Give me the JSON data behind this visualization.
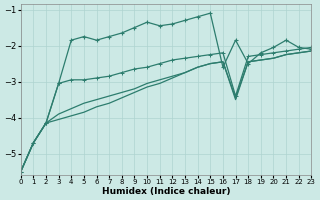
{
  "xlabel": "Humidex (Indice chaleur)",
  "xlim": [
    0,
    23
  ],
  "ylim": [
    -5.6,
    -0.85
  ],
  "yticks": [
    -5,
    -4,
    -3,
    -2,
    -1
  ],
  "xticks": [
    0,
    1,
    2,
    3,
    4,
    5,
    6,
    7,
    8,
    9,
    10,
    11,
    12,
    13,
    14,
    15,
    16,
    17,
    18,
    19,
    20,
    21,
    22,
    23
  ],
  "bg_color": "#cce9e5",
  "line_color": "#2d7d6e",
  "grid_color": "#afd4d0",
  "c1_x": [
    0,
    1,
    2,
    3,
    4,
    5,
    6,
    7,
    8,
    9,
    10,
    11,
    12,
    13,
    14,
    15,
    16,
    17,
    18,
    19,
    20,
    21,
    22,
    23
  ],
  "c1_y": [
    -5.5,
    -4.7,
    -4.15,
    -3.05,
    -1.85,
    -1.75,
    -1.85,
    -1.75,
    -1.65,
    -1.5,
    -1.35,
    -1.45,
    -1.4,
    -1.3,
    -1.2,
    -1.1,
    -2.6,
    -1.85,
    -2.5,
    -2.2,
    -2.05,
    -1.85,
    -2.05,
    -2.1
  ],
  "c2_x": [
    0,
    1,
    2,
    3,
    4,
    5,
    6,
    7,
    8,
    9,
    10,
    11,
    12,
    13,
    14,
    15,
    16,
    17,
    18,
    19,
    20,
    21,
    22,
    23
  ],
  "c2_y": [
    -5.5,
    -4.7,
    -4.15,
    -3.05,
    -2.95,
    -2.95,
    -2.9,
    -2.85,
    -2.75,
    -2.65,
    -2.6,
    -2.5,
    -2.4,
    -2.35,
    -2.3,
    -2.25,
    -2.2,
    -3.4,
    -2.3,
    -2.25,
    -2.2,
    -2.15,
    -2.1,
    -2.05
  ],
  "c3_x": [
    0,
    1,
    2,
    3,
    4,
    5,
    6,
    7,
    8,
    9,
    10,
    11,
    12,
    13,
    14,
    15,
    16,
    17,
    18,
    19,
    20,
    21,
    22,
    23
  ],
  "c3_y": [
    -5.5,
    -4.7,
    -4.15,
    -3.9,
    -3.75,
    -3.6,
    -3.5,
    -3.4,
    -3.3,
    -3.2,
    -3.05,
    -2.95,
    -2.85,
    -2.75,
    -2.6,
    -2.5,
    -2.45,
    -3.45,
    -2.45,
    -2.4,
    -2.35,
    -2.25,
    -2.2,
    -2.15
  ],
  "c4_x": [
    0,
    1,
    2,
    3,
    4,
    5,
    6,
    7,
    8,
    9,
    10,
    11,
    12,
    13,
    14,
    15,
    16,
    17,
    18,
    19,
    20,
    21,
    22,
    23
  ],
  "c4_y": [
    -5.5,
    -4.7,
    -4.15,
    -4.05,
    -3.95,
    -3.85,
    -3.7,
    -3.6,
    -3.45,
    -3.3,
    -3.15,
    -3.05,
    -2.9,
    -2.75,
    -2.6,
    -2.5,
    -2.45,
    -3.5,
    -2.45,
    -2.4,
    -2.35,
    -2.25,
    -2.2,
    -2.15
  ]
}
